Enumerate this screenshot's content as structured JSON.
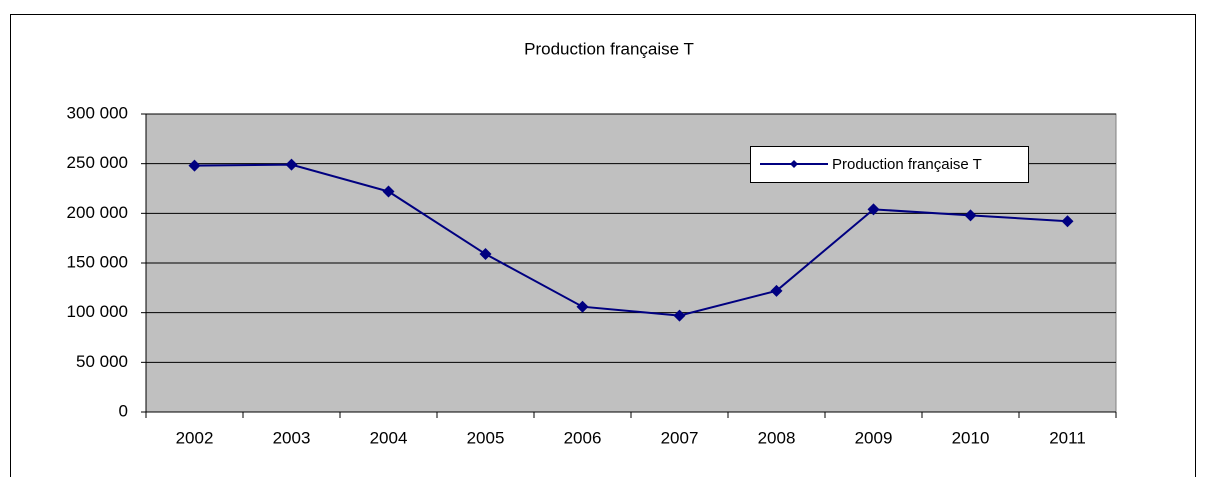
{
  "chart_data": {
    "type": "line",
    "title": "Production française T",
    "categories": [
      "2002",
      "2003",
      "2004",
      "2005",
      "2006",
      "2007",
      "2008",
      "2009",
      "2010",
      "2011"
    ],
    "series": [
      {
        "name": "Production française T",
        "color": "#000080",
        "values": [
          248000,
          249000,
          222000,
          159000,
          106000,
          97000,
          122000,
          204000,
          198000,
          192000
        ]
      }
    ],
    "ylim": [
      0,
      300000
    ],
    "yticks": [
      0,
      {
        "value": 50000,
        "label": "50 000"
      },
      {
        "value": 100000,
        "label": "100 000"
      },
      {
        "value": 150000,
        "label": "150 000"
      },
      {
        "value": 200000,
        "label": "200 000"
      },
      {
        "value": 250000,
        "label": "250 000"
      },
      {
        "value": 300000,
        "label": "300 000"
      }
    ],
    "grid": true,
    "legend": "upper right",
    "plot_background": "#c0c0c0"
  }
}
